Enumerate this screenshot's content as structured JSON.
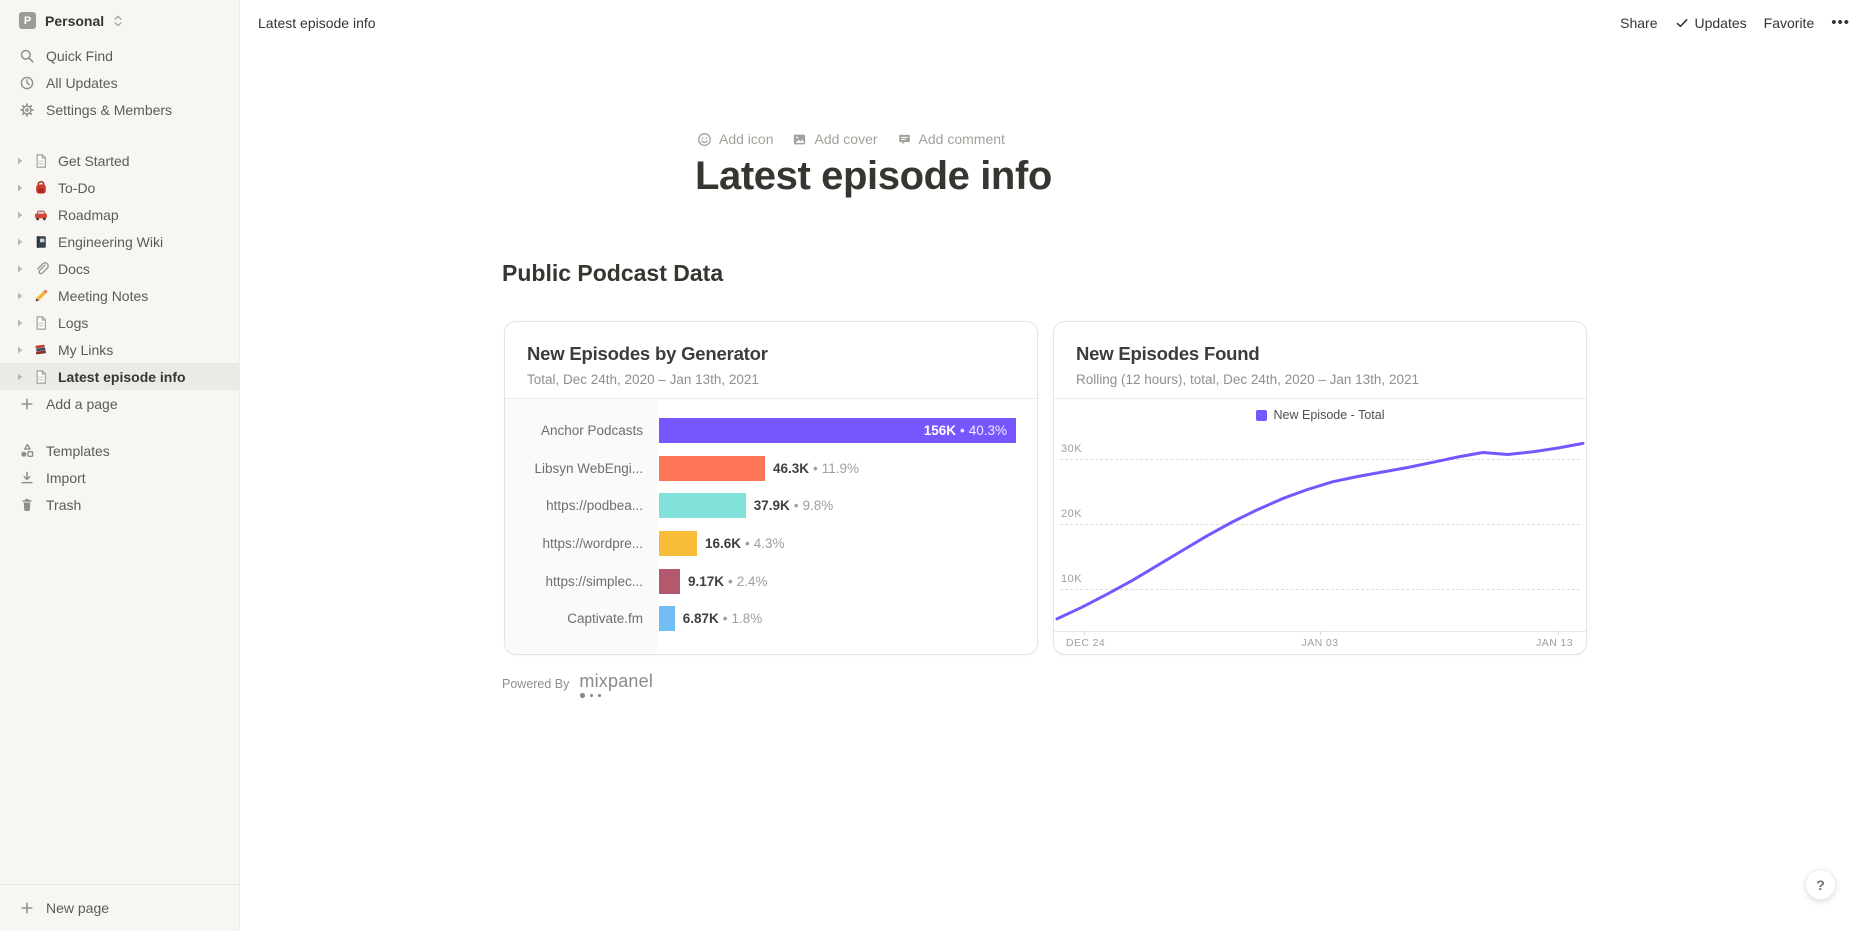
{
  "workspace": {
    "name": "Personal",
    "initial": "P"
  },
  "sidebar": {
    "menu": [
      {
        "icon": "search",
        "label": "Quick Find"
      },
      {
        "icon": "clock",
        "label": "All Updates"
      },
      {
        "icon": "gear",
        "label": "Settings & Members"
      }
    ],
    "pages": [
      {
        "icon": "page",
        "label": "Get Started"
      },
      {
        "icon": "backpack",
        "label": "To-Do"
      },
      {
        "icon": "car",
        "label": "Roadmap"
      },
      {
        "icon": "notebook",
        "label": "Engineering Wiki"
      },
      {
        "icon": "paperclip",
        "label": "Docs"
      },
      {
        "icon": "pencil",
        "label": "Meeting Notes"
      },
      {
        "icon": "page",
        "label": "Logs"
      },
      {
        "icon": "books",
        "label": "My Links"
      },
      {
        "icon": "page",
        "label": "Latest episode info",
        "selected": true
      }
    ],
    "add_page_label": "Add a page",
    "footer": [
      {
        "icon": "templates",
        "label": "Templates"
      },
      {
        "icon": "import",
        "label": "Import"
      },
      {
        "icon": "trash",
        "label": "Trash"
      }
    ],
    "new_page_label": "New page"
  },
  "topbar": {
    "breadcrumb": "Latest episode info",
    "share": "Share",
    "updates": "Updates",
    "favorite": "Favorite",
    "more": "•••"
  },
  "page": {
    "controls": [
      {
        "icon": "smiley",
        "label": "Add icon"
      },
      {
        "icon": "image",
        "label": "Add cover"
      },
      {
        "icon": "comment",
        "label": "Add comment"
      }
    ],
    "title": "Latest episode info",
    "section_heading": "Public Podcast Data",
    "powered_by": "Powered By",
    "brand": "mixpanel",
    "help": "?"
  },
  "colors": {
    "accent": "#7856FF"
  },
  "chart_data": [
    {
      "type": "bar",
      "orientation": "horizontal",
      "title": "New Episodes by Generator",
      "subtitle": "Total, Dec 24th, 2020 – Jan 13th, 2021",
      "categories": [
        "Anchor Podcasts",
        "Libsyn WebEngi...",
        "https://podbea...",
        "https://wordpre...",
        "https://simplec...",
        "Captivate.fm"
      ],
      "values": [
        156000,
        46300,
        37900,
        16600,
        9170,
        6870
      ],
      "value_labels": [
        "156K",
        "46.3K",
        "37.9K",
        "16.6K",
        "9.17K",
        "6.87K"
      ],
      "pct_labels": [
        "40.3%",
        "11.9%",
        "9.8%",
        "4.3%",
        "2.4%",
        "1.8%"
      ],
      "colors": [
        "#7856FF",
        "#FF7557",
        "#80E1D9",
        "#F8BC3B",
        "#B2596E",
        "#72BEF4"
      ]
    },
    {
      "type": "line",
      "title": "New Episodes Found",
      "subtitle": "Rolling (12 hours), total, Dec 24th, 2020 – Jan 13th, 2021",
      "legend": [
        "New Episode - Total"
      ],
      "line_color": "#7856FF",
      "y_ticks": [
        "10K",
        "20K",
        "30K"
      ],
      "y_tick_values": [
        10000,
        20000,
        30000
      ],
      "x_ticks": [
        "DEC 24",
        "JAN 03",
        "JAN 13"
      ],
      "x_range": [
        "Dec 24th, 2020",
        "Jan 13th, 2021"
      ],
      "values_thousands": [
        5.4,
        7.2,
        9.2,
        11.3,
        13.6,
        15.9,
        18.2,
        20.3,
        22.2,
        23.9,
        25.3,
        26.5,
        27.3,
        28.0,
        28.7,
        29.5,
        30.3,
        31.0,
        30.7,
        31.1,
        31.7,
        32.4
      ],
      "ylim": [
        0,
        35000
      ],
      "grid": "dashed-horizontal",
      "legend_position": "top-center"
    }
  ]
}
